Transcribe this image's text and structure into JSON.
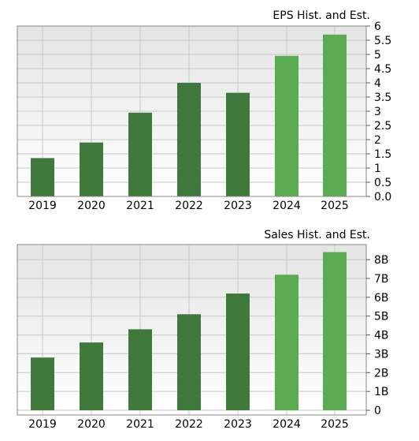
{
  "colors": {
    "historical": "#3f7a3c",
    "estimated": "#5aab52",
    "grid": "#c8c8c8",
    "border": "#8a8a8a",
    "plot_top": "#e4e4e4",
    "plot_bottom": "#ffffff"
  },
  "chart_data": [
    {
      "type": "bar",
      "title": "EPS Hist. and Est.",
      "categories": [
        "2019",
        "2020",
        "2021",
        "2022",
        "2023",
        "2024",
        "2025"
      ],
      "values": [
        1.35,
        1.9,
        2.95,
        4.0,
        3.65,
        4.95,
        5.7
      ],
      "estimated": [
        false,
        false,
        false,
        false,
        false,
        true,
        true
      ],
      "ylim": [
        0,
        6
      ],
      "yticks": [
        {
          "value": 0,
          "label": "0.0"
        },
        {
          "value": 0.5,
          "label": "0.5"
        },
        {
          "value": 1,
          "label": "1"
        },
        {
          "value": 1.5,
          "label": "1.5"
        },
        {
          "value": 2,
          "label": "2"
        },
        {
          "value": 2.5,
          "label": "2.5"
        },
        {
          "value": 3,
          "label": "3"
        },
        {
          "value": 3.5,
          "label": "3.5"
        },
        {
          "value": 4,
          "label": "4"
        },
        {
          "value": 4.5,
          "label": "4.5"
        },
        {
          "value": 5,
          "label": "5"
        },
        {
          "value": 5.5,
          "label": "5.5"
        },
        {
          "value": 6,
          "label": "6"
        }
      ],
      "grid": true,
      "legend": "none"
    },
    {
      "type": "bar",
      "title": "Sales Hist. and Est.",
      "categories": [
        "2019",
        "2020",
        "2021",
        "2022",
        "2023",
        "2024",
        "2025"
      ],
      "values": [
        2.8,
        3.6,
        4.3,
        5.1,
        6.2,
        7.2,
        8.4
      ],
      "unit": "B",
      "estimated": [
        false,
        false,
        false,
        false,
        false,
        true,
        true
      ],
      "ylim": [
        -0.25,
        8.8
      ],
      "yticks": [
        {
          "value": 0,
          "label": "0"
        },
        {
          "value": 1,
          "label": "1B"
        },
        {
          "value": 2,
          "label": "2B"
        },
        {
          "value": 3,
          "label": "3B"
        },
        {
          "value": 4,
          "label": "4B"
        },
        {
          "value": 5,
          "label": "5B"
        },
        {
          "value": 6,
          "label": "6B"
        },
        {
          "value": 7,
          "label": "7B"
        },
        {
          "value": 8,
          "label": "8B"
        }
      ],
      "grid": true,
      "legend": "none"
    }
  ]
}
